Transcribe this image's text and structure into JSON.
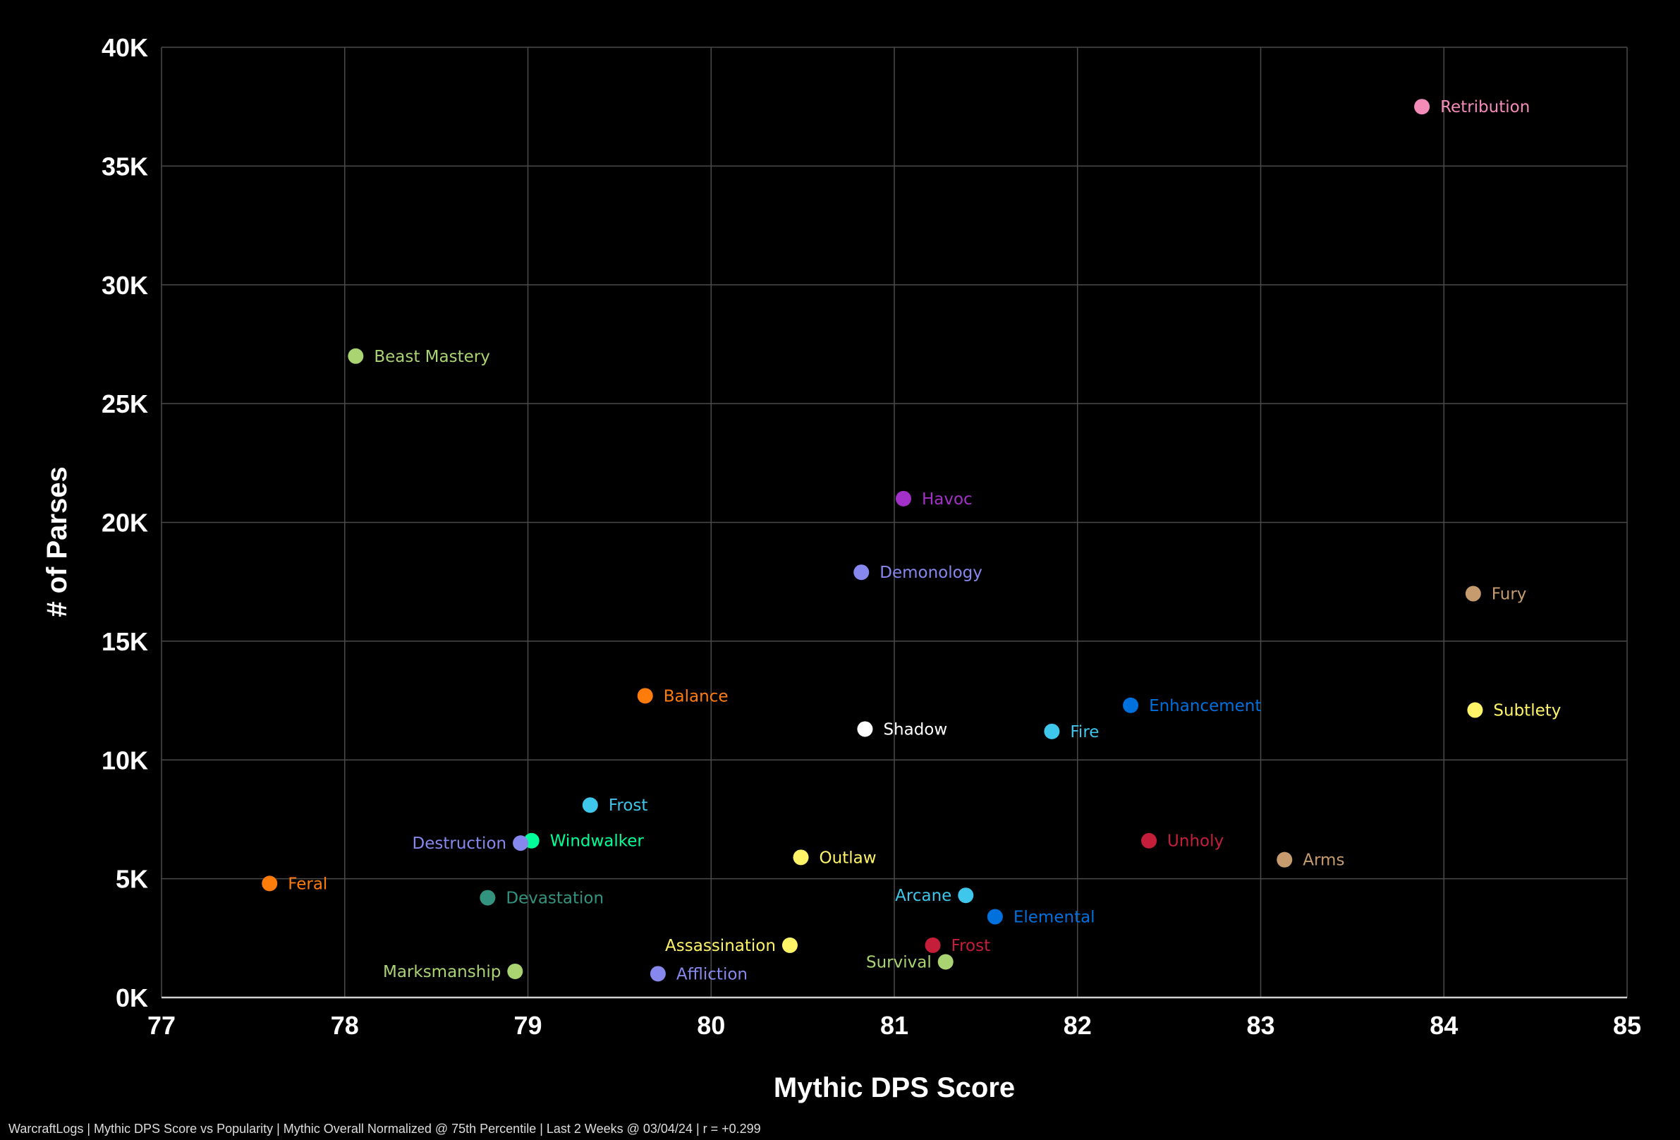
{
  "chart_data": {
    "type": "scatter",
    "xlabel": "Mythic DPS Score",
    "ylabel": "# of Parses",
    "xlim": [
      77,
      85
    ],
    "ylim": [
      0,
      40000
    ],
    "x_ticks": [
      "77",
      "78",
      "79",
      "80",
      "81",
      "82",
      "83",
      "84",
      "85"
    ],
    "y_ticks": [
      "0K",
      "5K",
      "10K",
      "15K",
      "20K",
      "25K",
      "30K",
      "35K",
      "40K"
    ],
    "grid": true,
    "points": [
      {
        "label": "Retribution",
        "x": 83.88,
        "y": 37500,
        "color": "#f48cba",
        "label_side": "right"
      },
      {
        "label": "Beast Mastery",
        "x": 78.06,
        "y": 27000,
        "color": "#aad372",
        "label_side": "right"
      },
      {
        "label": "Havoc",
        "x": 81.05,
        "y": 21000,
        "color": "#a330c9",
        "label_side": "right"
      },
      {
        "label": "Demonology",
        "x": 80.82,
        "y": 17900,
        "color": "#8788ee",
        "label_side": "right"
      },
      {
        "label": "Fury",
        "x": 84.16,
        "y": 17000,
        "color": "#c69b6d",
        "label_side": "right"
      },
      {
        "label": "Balance",
        "x": 79.64,
        "y": 12700,
        "color": "#ff7c0a",
        "label_side": "right"
      },
      {
        "label": "Enhancement",
        "x": 82.29,
        "y": 12300,
        "color": "#0070dd",
        "label_side": "right"
      },
      {
        "label": "Subtlety",
        "x": 84.17,
        "y": 12100,
        "color": "#fff468",
        "label_side": "right"
      },
      {
        "label": "Shadow",
        "x": 80.84,
        "y": 11300,
        "color": "#ffffff",
        "label_side": "right"
      },
      {
        "label": "Fire",
        "x": 81.86,
        "y": 11200,
        "color": "#3fc7eb",
        "label_side": "right"
      },
      {
        "label": "Frost",
        "x": 79.34,
        "y": 8100,
        "color": "#3fc7eb",
        "label_side": "right"
      },
      {
        "label": "Windwalker",
        "x": 79.02,
        "y": 6600,
        "color": "#00ff98",
        "label_side": "right"
      },
      {
        "label": "Destruction",
        "x": 78.96,
        "y": 6500,
        "color": "#8788ee",
        "label_side": "left"
      },
      {
        "label": "Unholy",
        "x": 82.39,
        "y": 6600,
        "color": "#c41e3a",
        "label_side": "right"
      },
      {
        "label": "Outlaw",
        "x": 80.49,
        "y": 5900,
        "color": "#fff468",
        "label_side": "right"
      },
      {
        "label": "Arms",
        "x": 83.13,
        "y": 5800,
        "color": "#c69b6d",
        "label_side": "right"
      },
      {
        "label": "Feral",
        "x": 77.59,
        "y": 4800,
        "color": "#ff7c0a",
        "label_side": "right"
      },
      {
        "label": "Devastation",
        "x": 78.78,
        "y": 4200,
        "color": "#33937f",
        "label_side": "right"
      },
      {
        "label": "Arcane",
        "x": 81.39,
        "y": 4300,
        "color": "#3fc7eb",
        "label_side": "left"
      },
      {
        "label": "Elemental",
        "x": 81.55,
        "y": 3400,
        "color": "#0070dd",
        "label_side": "right"
      },
      {
        "label": "Assassination",
        "x": 80.43,
        "y": 2200,
        "color": "#fff468",
        "label_side": "left"
      },
      {
        "label": "Frost",
        "x": 81.21,
        "y": 2200,
        "color": "#c41e3a",
        "label_side": "right"
      },
      {
        "label": "Survival",
        "x": 81.28,
        "y": 1500,
        "color": "#aad372",
        "label_side": "left"
      },
      {
        "label": "Marksmanship",
        "x": 78.93,
        "y": 1100,
        "color": "#aad372",
        "label_side": "left"
      },
      {
        "label": "Affliction",
        "x": 79.71,
        "y": 1000,
        "color": "#8788ee",
        "label_side": "right"
      }
    ]
  },
  "footer": {
    "text": "WarcraftLogs | Mythic DPS Score vs Popularity | Mythic Overall Normalized @ 75th Percentile | Last 2 Weeks @ 03/04/24 | r = +0.299"
  }
}
